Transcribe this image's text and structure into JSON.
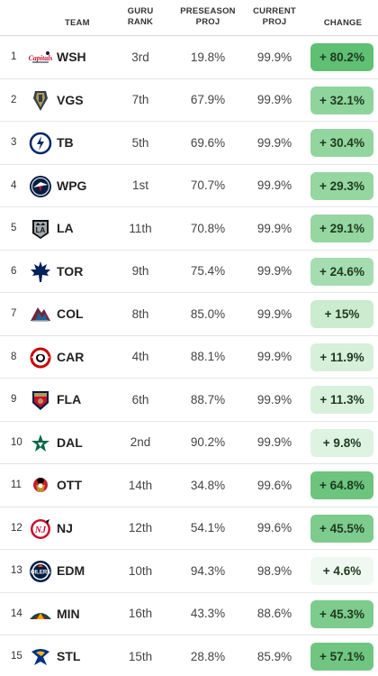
{
  "header": {
    "team": "TEAM",
    "rank_line1": "GURU",
    "rank_line2": "RANK",
    "pre_line1": "PRESEASON",
    "pre_line2": "PROJ",
    "cur_line1": "CURRENT",
    "cur_line2": "PROJ",
    "change": "CHANGE"
  },
  "rows": [
    {
      "num": "1",
      "team": "WSH",
      "logo": "capitals-logo-icon",
      "rank": "3rd",
      "pre": "19.8%",
      "cur": "99.9%",
      "change": "+ 80.2%",
      "color": "#5fbf73"
    },
    {
      "num": "2",
      "team": "VGS",
      "logo": "golden-knights-logo-icon",
      "rank": "7th",
      "pre": "67.9%",
      "cur": "99.9%",
      "change": "+ 32.1%",
      "color": "#8fd49c"
    },
    {
      "num": "3",
      "team": "TB",
      "logo": "lightning-logo-icon",
      "rank": "5th",
      "pre": "69.6%",
      "cur": "99.9%",
      "change": "+ 30.4%",
      "color": "#92d59f"
    },
    {
      "num": "4",
      "team": "WPG",
      "logo": "jets-logo-icon",
      "rank": "1st",
      "pre": "70.7%",
      "cur": "99.9%",
      "change": "+ 29.3%",
      "color": "#95d6a1"
    },
    {
      "num": "5",
      "team": "LA",
      "logo": "kings-logo-icon",
      "rank": "11th",
      "pre": "70.8%",
      "cur": "99.9%",
      "change": "+ 29.1%",
      "color": "#95d6a1"
    },
    {
      "num": "6",
      "team": "TOR",
      "logo": "maple-leafs-logo-icon",
      "rank": "9th",
      "pre": "75.4%",
      "cur": "99.9%",
      "change": "+ 24.6%",
      "color": "#a6ddb0"
    },
    {
      "num": "7",
      "team": "COL",
      "logo": "avalanche-logo-icon",
      "rank": "8th",
      "pre": "85.0%",
      "cur": "99.9%",
      "change": "+ 15%",
      "color": "#cbeccf"
    },
    {
      "num": "8",
      "team": "CAR",
      "logo": "hurricanes-logo-icon",
      "rank": "4th",
      "pre": "88.1%",
      "cur": "99.9%",
      "change": "+ 11.9%",
      "color": "#d6f0da"
    },
    {
      "num": "9",
      "team": "FLA",
      "logo": "panthers-logo-icon",
      "rank": "6th",
      "pre": "88.7%",
      "cur": "99.9%",
      "change": "+ 11.3%",
      "color": "#d8f1dc"
    },
    {
      "num": "10",
      "team": "DAL",
      "logo": "stars-logo-icon",
      "rank": "2nd",
      "pre": "90.2%",
      "cur": "99.9%",
      "change": "+ 9.8%",
      "color": "#dff3e2"
    },
    {
      "num": "11",
      "team": "OTT",
      "logo": "senators-logo-icon",
      "rank": "14th",
      "pre": "34.8%",
      "cur": "99.6%",
      "change": "+ 64.8%",
      "color": "#6cc47e"
    },
    {
      "num": "12",
      "team": "NJ",
      "logo": "devils-logo-icon",
      "rank": "12th",
      "pre": "54.1%",
      "cur": "99.6%",
      "change": "+ 45.5%",
      "color": "#7dcb8d"
    },
    {
      "num": "13",
      "team": "EDM",
      "logo": "oilers-logo-icon",
      "rank": "10th",
      "pre": "94.3%",
      "cur": "98.9%",
      "change": "+ 4.6%",
      "color": "#f0f9f1"
    },
    {
      "num": "14",
      "team": "MIN",
      "logo": "wild-logo-icon",
      "rank": "16th",
      "pre": "43.3%",
      "cur": "88.6%",
      "change": "+ 45.3%",
      "color": "#7dcb8d"
    },
    {
      "num": "15",
      "team": "STL",
      "logo": "blues-logo-icon",
      "rank": "15th",
      "pre": "28.8%",
      "cur": "85.9%",
      "change": "+ 57.1%",
      "color": "#70c681"
    }
  ]
}
